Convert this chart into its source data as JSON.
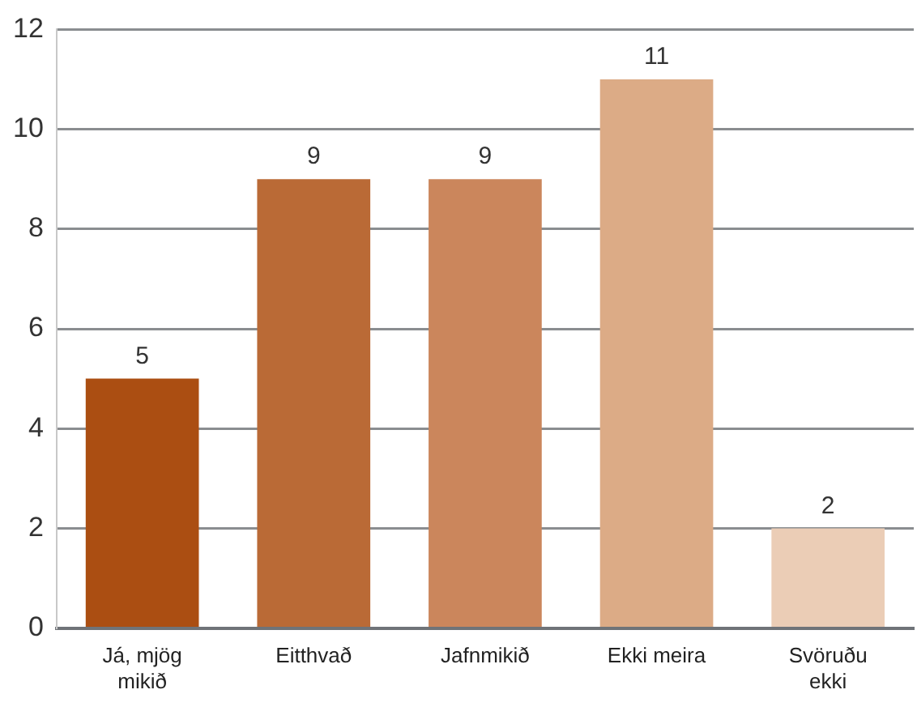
{
  "chart_data": {
    "type": "bar",
    "categories": [
      "Já, mjög mikið",
      "Eitthvað",
      "Jafnmikið",
      "Ekki meira",
      "Svöruðu ekki"
    ],
    "values": [
      5,
      9,
      9,
      11,
      2
    ],
    "colors": [
      "#ab4e12",
      "#ba6a36",
      "#cb865c",
      "#dcab86",
      "#ebcdb6"
    ],
    "ylim": [
      0,
      12
    ],
    "yticks": [
      0,
      2,
      4,
      6,
      8,
      10,
      12
    ],
    "grid": "y",
    "legend": false,
    "data_labels": true
  }
}
